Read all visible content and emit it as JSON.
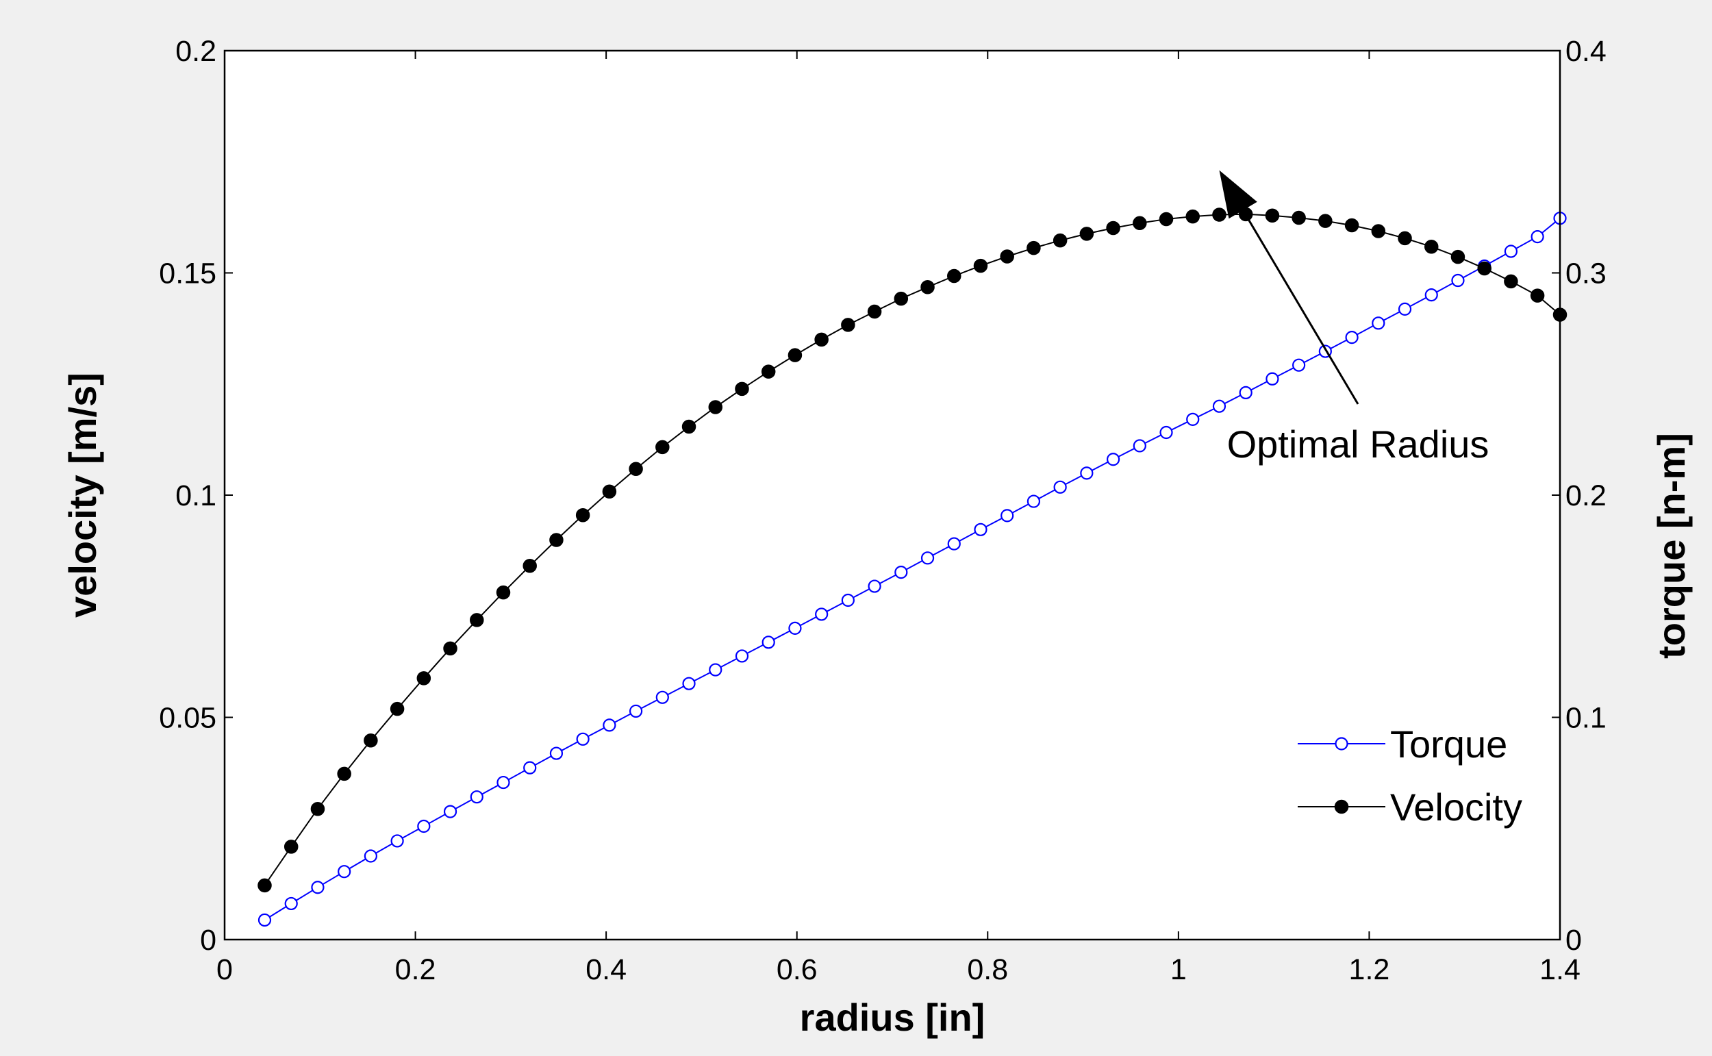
{
  "chart_data": {
    "type": "line",
    "title": "",
    "xlabel": "radius  [in]",
    "ylabel": "velocity  [m/s]",
    "y2label": "torque  [n-m]",
    "xlim": [
      0,
      1.4
    ],
    "ylim": [
      0,
      0.2
    ],
    "y2lim": [
      0,
      0.4
    ],
    "xticks": [
      0,
      0.2,
      0.4,
      0.6,
      0.8,
      1,
      1.2,
      1.4
    ],
    "xtick_labels": [
      "0",
      "0.2",
      "0.4",
      "0.6",
      "0.8",
      "1",
      "1.2",
      "1.4"
    ],
    "yticks": [
      0,
      0.05,
      0.1,
      0.15,
      0.2
    ],
    "ytick_labels": [
      "0",
      "0.05",
      "0.1",
      "0.15",
      "0.2"
    ],
    "y2ticks": [
      0,
      0.1,
      0.2,
      0.3,
      0.4
    ],
    "y2tick_labels": [
      "0",
      "0.1",
      "0.2",
      "0.3",
      "0.4"
    ],
    "grid": false,
    "legend_position": "bottom-right",
    "x": [
      0.042,
      0.0698,
      0.0976,
      0.1254,
      0.1532,
      0.181,
      0.2088,
      0.2366,
      0.2644,
      0.2922,
      0.32,
      0.3478,
      0.3756,
      0.4034,
      0.4312,
      0.459,
      0.4868,
      0.5146,
      0.5424,
      0.5702,
      0.598,
      0.6258,
      0.6536,
      0.6814,
      0.7092,
      0.737,
      0.7648,
      0.7926,
      0.8204,
      0.8482,
      0.876,
      0.9038,
      0.9316,
      0.9594,
      0.9872,
      1.015,
      1.0428,
      1.0706,
      1.0984,
      1.1262,
      1.154,
      1.1818,
      1.2096,
      1.2374,
      1.2652,
      1.293,
      1.3208,
      1.3486,
      1.3764,
      1.4
    ],
    "series": [
      {
        "name": "Torque",
        "axis": "right",
        "color": "#0000ff",
        "marker": "open-circle",
        "values": [
          0.0088,
          0.0162,
          0.0235,
          0.0306,
          0.0376,
          0.0444,
          0.051,
          0.0576,
          0.0642,
          0.0707,
          0.0773,
          0.0838,
          0.0902,
          0.0965,
          0.1028,
          0.109,
          0.1152,
          0.1214,
          0.1276,
          0.1338,
          0.1401,
          0.1464,
          0.1527,
          0.159,
          0.1653,
          0.1717,
          0.1781,
          0.1845,
          0.1908,
          0.1972,
          0.2036,
          0.2099,
          0.2161,
          0.2222,
          0.2282,
          0.2341,
          0.24,
          0.2461,
          0.2523,
          0.2585,
          0.2647,
          0.271,
          0.2774,
          0.2837,
          0.2901,
          0.2966,
          0.3031,
          0.3097,
          0.3163,
          0.3246
        ]
      },
      {
        "name": "Velocity",
        "axis": "left",
        "color": "#000000",
        "marker": "filled-circle",
        "values": [
          0.0122,
          0.0209,
          0.0294,
          0.0373,
          0.0448,
          0.0519,
          0.0588,
          0.0655,
          0.0719,
          0.0781,
          0.0841,
          0.0899,
          0.0955,
          0.1008,
          0.1059,
          0.1108,
          0.1154,
          0.1198,
          0.1239,
          0.1278,
          0.1315,
          0.135,
          0.1383,
          0.1413,
          0.1442,
          0.1468,
          0.1493,
          0.1516,
          0.1537,
          0.1556,
          0.1573,
          0.1588,
          0.1601,
          0.1612,
          0.1621,
          0.1627,
          0.1631,
          0.1632,
          0.1629,
          0.1624,
          0.1617,
          0.1607,
          0.1594,
          0.1578,
          0.1559,
          0.1536,
          0.151,
          0.1481,
          0.1449,
          0.1406
        ]
      }
    ],
    "annotations": [
      {
        "text": "Optimal Radius",
        "arrow_target": {
          "x": 1.0428,
          "y": 0.1731
        }
      }
    ]
  }
}
